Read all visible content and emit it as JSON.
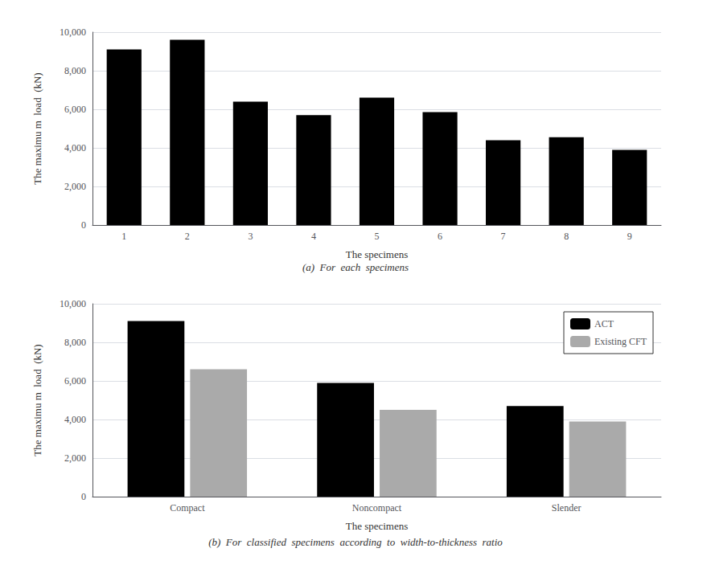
{
  "chart_data": [
    {
      "type": "bar",
      "categories": [
        "1",
        "2",
        "3",
        "4",
        "5",
        "6",
        "7",
        "8",
        "9"
      ],
      "values": [
        9100,
        9600,
        6400,
        5700,
        6600,
        5850,
        4400,
        4550,
        3900
      ],
      "color": "#000000",
      "xlabel": "The specimens",
      "ylabel": "The maximu m  load  (kN)",
      "ylim": [
        0,
        10000
      ],
      "yticks": [
        0,
        {
          "value": 2000,
          "label": "2,000"
        },
        {
          "value": 4000,
          "label": "4,000"
        },
        {
          "value": 6000,
          "label": "6,000"
        },
        {
          "value": 8000,
          "label": "8,000"
        },
        {
          "value": 10000,
          "label": "10,000"
        }
      ],
      "grid": true,
      "caption": "(a)  For  each  specimens"
    },
    {
      "type": "bar",
      "categories": [
        "Compact",
        "Noncompact",
        "Slender"
      ],
      "series": [
        {
          "name": "ACT",
          "color": "#000000",
          "values": [
            9100,
            5900,
            4700
          ]
        },
        {
          "name": "Existing CFT",
          "color": "#aaaaaa",
          "values": [
            6600,
            4500,
            3900
          ]
        }
      ],
      "xlabel": "The specimens",
      "ylabel": "The maximu m  load  (kN)",
      "ylim": [
        0,
        10000
      ],
      "yticks": [
        0,
        {
          "value": 2000,
          "label": "2,000"
        },
        {
          "value": 4000,
          "label": "4,000"
        },
        {
          "value": 6000,
          "label": "6,000"
        },
        {
          "value": 8000,
          "label": "8,000"
        },
        {
          "value": 10000,
          "label": "10,000"
        }
      ],
      "grid": true,
      "legend": "upper right",
      "caption": "(b)  For  classified  specimens  according  to  width-to-thickness  ratio"
    }
  ]
}
